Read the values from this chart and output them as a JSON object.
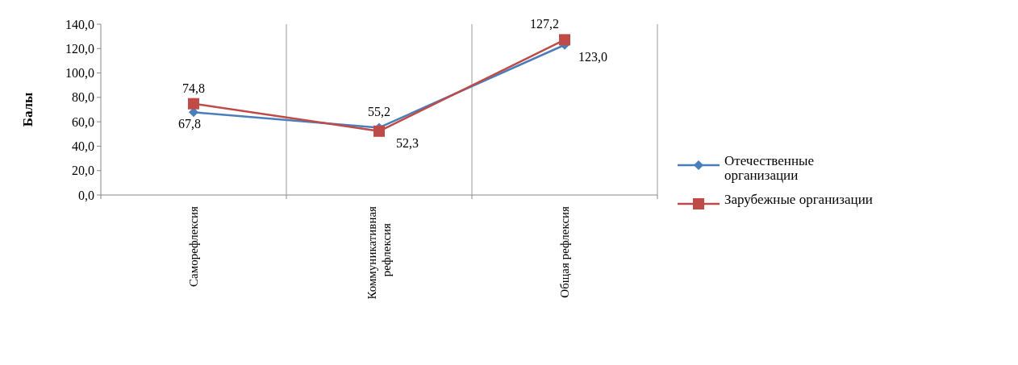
{
  "chart_data": {
    "type": "line",
    "ylabel": "Балы",
    "categories": [
      "Саморефлексия",
      "Коммуникативная рефлексия",
      "Общая рефлексия"
    ],
    "series": [
      {
        "name": "Отечественные организации",
        "color": "#4a7ebb",
        "marker": "diamond",
        "values": [
          67.8,
          55.2,
          123.0
        ],
        "value_labels": [
          "67,8",
          "55,2",
          "123,0"
        ]
      },
      {
        "name": "Зарубежные организации",
        "color": "#be4b48",
        "marker": "square",
        "values": [
          74.8,
          52.3,
          127.2
        ],
        "value_labels": [
          "74,8",
          "52,3",
          "127,2"
        ]
      }
    ],
    "ylim": [
      0,
      140
    ],
    "yticks": [
      {
        "value": 0,
        "label": "0,0"
      },
      {
        "value": 20,
        "label": "20,0"
      },
      {
        "value": 40,
        "label": "40,0"
      },
      {
        "value": 60,
        "label": "60,0"
      },
      {
        "value": 80,
        "label": "80,0"
      },
      {
        "value": 100,
        "label": "100,0"
      },
      {
        "value": 120,
        "label": "120,0"
      },
      {
        "value": 140,
        "label": "140,0"
      }
    ],
    "grid": "x",
    "legend": "right"
  }
}
